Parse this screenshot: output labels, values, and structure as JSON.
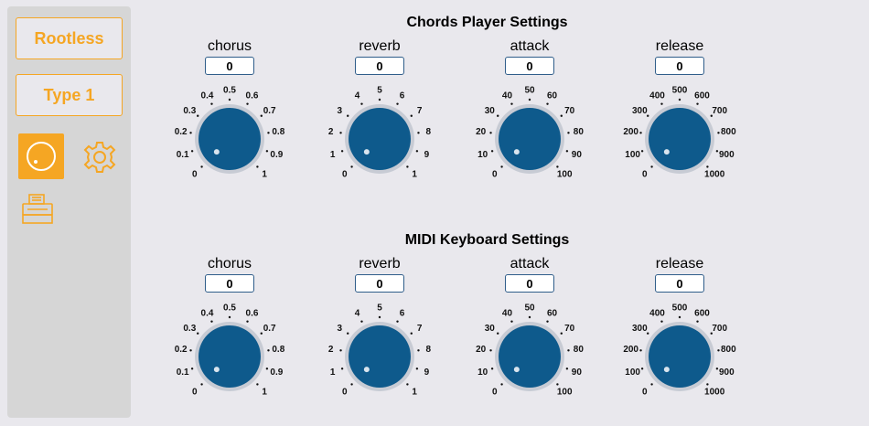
{
  "sidebar": {
    "rootless_label": "Rootless",
    "type_label": "Type 1",
    "icons": [
      "knob-icon",
      "gear-icon",
      "printer-icon"
    ],
    "accent_color": "#f5a623"
  },
  "sections": [
    {
      "title": "Chords Player Settings",
      "knobs": [
        {
          "label": "chorus",
          "value": "0",
          "ticks": [
            "0",
            "0.1",
            "0.2",
            "0.3",
            "0.4",
            "0.5",
            "0.6",
            "0.7",
            "0.8",
            "0.9",
            "1"
          ]
        },
        {
          "label": "reverb",
          "value": "0",
          "ticks": [
            "0",
            "1",
            "2",
            "3",
            "4",
            "5",
            "6",
            "7",
            "8",
            "9",
            "1"
          ]
        },
        {
          "label": "attack",
          "value": "0",
          "ticks": [
            "0",
            "10",
            "20",
            "30",
            "40",
            "50",
            "60",
            "70",
            "80",
            "90",
            "100"
          ]
        },
        {
          "label": "release",
          "value": "0",
          "ticks": [
            "0",
            "100",
            "200",
            "300",
            "400",
            "500",
            "600",
            "700",
            "800",
            "900",
            "1000"
          ]
        }
      ]
    },
    {
      "title": "MIDI Keyboard Settings",
      "knobs": [
        {
          "label": "chorus",
          "value": "0",
          "ticks": [
            "0",
            "0.1",
            "0.2",
            "0.3",
            "0.4",
            "0.5",
            "0.6",
            "0.7",
            "0.8",
            "0.9",
            "1"
          ]
        },
        {
          "label": "reverb",
          "value": "0",
          "ticks": [
            "0",
            "1",
            "2",
            "3",
            "4",
            "5",
            "6",
            "7",
            "8",
            "9",
            "1"
          ]
        },
        {
          "label": "attack",
          "value": "0",
          "ticks": [
            "0",
            "10",
            "20",
            "30",
            "40",
            "50",
            "60",
            "70",
            "80",
            "90",
            "100"
          ]
        },
        {
          "label": "release",
          "value": "0",
          "ticks": [
            "0",
            "100",
            "200",
            "300",
            "400",
            "500",
            "600",
            "700",
            "800",
            "900",
            "1000"
          ]
        }
      ]
    }
  ],
  "knob_color": "#0e5a8c"
}
